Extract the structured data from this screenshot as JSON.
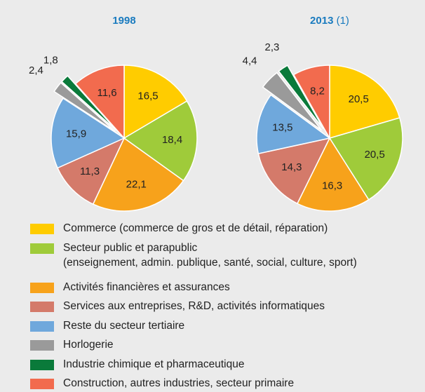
{
  "chart_data": [
    {
      "type": "pie",
      "title": "1998",
      "values": [
        16.5,
        18.4,
        22.1,
        11.3,
        15.9,
        2.4,
        1.8,
        11.6
      ],
      "value_labels": [
        "16,5",
        "18,4",
        "22,1",
        "11,3",
        "15,9",
        "2,4",
        "1,8",
        "11,6"
      ],
      "exploded": [
        5,
        6
      ]
    },
    {
      "type": "pie",
      "title": "2013",
      "title_note": "(1)",
      "values": [
        20.5,
        20.5,
        16.3,
        14.3,
        13.5,
        4.4,
        2.3,
        8.2
      ],
      "value_labels": [
        "20,5",
        "20,5",
        "16,3",
        "14,3",
        "13,5",
        "4,4",
        "2,3",
        "8,2"
      ],
      "exploded": [
        5,
        6
      ]
    }
  ],
  "legend": {
    "labels": [
      "Commerce (commerce de gros et de détail, réparation)",
      "Secteur public et parapublic\n(enseignement, admin. publique, santé, social, culture, sport)",
      "Activités financières et assurances",
      "Services aux entreprises, R&D, activités informatiques",
      "Reste du secteur tertiaire",
      "Horlogerie",
      "Industrie chimique et pharmaceutique",
      "Construction, autres industries, secteur primaire"
    ],
    "colors": [
      "#ffcc00",
      "#9fcb3a",
      "#f7a21b",
      "#d47a6a",
      "#6fa8dc",
      "#9a9a9a",
      "#0a7a3a",
      "#f26b4e"
    ]
  }
}
